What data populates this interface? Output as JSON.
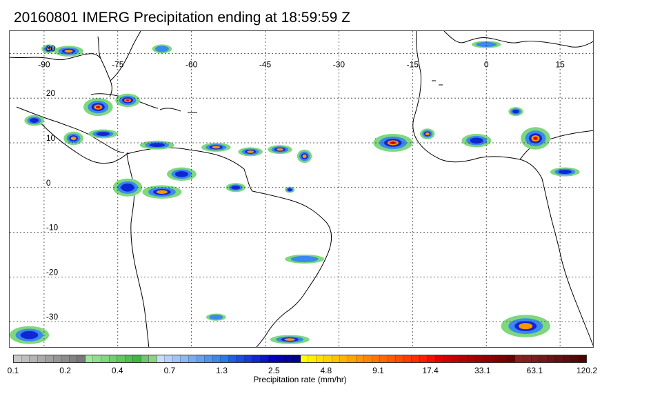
{
  "title": "20160801 IMERG Precipitation ending at 18:59:59 Z",
  "map": {
    "lon_range": [
      -97,
      22
    ],
    "lat_range": [
      -36,
      35
    ],
    "lon_ticks": [
      -90,
      -75,
      -60,
      -45,
      -30,
      -15,
      0,
      15
    ],
    "lon_tick_labels": [
      "-90",
      "-75",
      "-60",
      "-45",
      "-30",
      "-15",
      "0",
      "15"
    ],
    "lat_ticks": [
      30,
      20,
      10,
      0,
      -10,
      -20,
      -30
    ],
    "lat_tick_labels": [
      "30",
      "20",
      "10",
      "0",
      "-10",
      "-20",
      "-30"
    ],
    "gridlines": true
  },
  "colorbar": {
    "label": "Precipitation rate (mm/hr)",
    "tick_labels": [
      "0.1",
      "0.2",
      "0.4",
      "0.7",
      "1.3",
      "2.5",
      "4.8",
      "9.1",
      "17.4",
      "33.1",
      "63.1",
      "120.2"
    ],
    "colors": [
      "#c8c8c8",
      "#bebebe",
      "#b4b4b4",
      "#aaaaaa",
      "#a0a0a0",
      "#969696",
      "#8c8c8c",
      "#828282",
      "#787878",
      "#9ee89e",
      "#8ee08e",
      "#7ed87e",
      "#6ed06e",
      "#5ec85e",
      "#4ec04e",
      "#3eb83e",
      "#74c474",
      "#8cd08c",
      "#c8dcfa",
      "#b4d0f8",
      "#a0c4f6",
      "#8cb8f4",
      "#78acf2",
      "#64a0f0",
      "#5094ee",
      "#3c88ec",
      "#287ce8",
      "#1f5fe6",
      "#1a4ce0",
      "#1539da",
      "#1026d4",
      "#0b13ce",
      "#0000c8",
      "#0000b4",
      "#0000a0",
      "#00008c",
      "#ffff00",
      "#fff000",
      "#ffe100",
      "#ffd200",
      "#ffc300",
      "#ffb400",
      "#ffa500",
      "#ff9600",
      "#ff8700",
      "#ff7800",
      "#ff6900",
      "#ff5a00",
      "#ff4b00",
      "#ff3c00",
      "#ff2d00",
      "#ff1e00",
      "#f00f00",
      "#e00000",
      "#d00000",
      "#c00000",
      "#b40000",
      "#a80000",
      "#9c0000",
      "#900000",
      "#840000",
      "#780000",
      "#6c0000",
      "#8c2020",
      "#842020",
      "#7c1c1c",
      "#741818",
      "#6c1414",
      "#641010",
      "#5c0c0c",
      "#540808",
      "#4c0404"
    ]
  },
  "precipitation_cells": [
    {
      "lon": -79,
      "lat": 18,
      "rx": 3.0,
      "ry": 2.0,
      "intensity": 3
    },
    {
      "lon": -73,
      "lat": 19.5,
      "rx": 2.5,
      "ry": 1.5,
      "intensity": 3
    },
    {
      "lon": -85,
      "lat": 30.5,
      "rx": 3.0,
      "ry": 1.2,
      "intensity": 2
    },
    {
      "lon": -89,
      "lat": 31,
      "rx": 1.5,
      "ry": 1.0,
      "intensity": 2
    },
    {
      "lon": -92,
      "lat": 15,
      "rx": 2.0,
      "ry": 1.2,
      "intensity": 1
    },
    {
      "lon": -84,
      "lat": 11,
      "rx": 2.0,
      "ry": 1.5,
      "intensity": 2
    },
    {
      "lon": -78,
      "lat": 12,
      "rx": 3.0,
      "ry": 1.0,
      "intensity": 1
    },
    {
      "lon": -67,
      "lat": 9.5,
      "rx": 3.5,
      "ry": 1.0,
      "intensity": 1
    },
    {
      "lon": -55,
      "lat": 9,
      "rx": 3.0,
      "ry": 1.0,
      "intensity": 2
    },
    {
      "lon": -48,
      "lat": 8,
      "rx": 2.5,
      "ry": 1.0,
      "intensity": 2
    },
    {
      "lon": -42,
      "lat": 8.5,
      "rx": 2.5,
      "ry": 1.0,
      "intensity": 2
    },
    {
      "lon": -37,
      "lat": 7,
      "rx": 1.5,
      "ry": 1.5,
      "intensity": 2
    },
    {
      "lon": -19,
      "lat": 10,
      "rx": 4.0,
      "ry": 2.0,
      "intensity": 3
    },
    {
      "lon": -12,
      "lat": 12,
      "rx": 1.5,
      "ry": 1.2,
      "intensity": 2
    },
    {
      "lon": -2,
      "lat": 10.5,
      "rx": 3.0,
      "ry": 1.5,
      "intensity": 1
    },
    {
      "lon": 10,
      "lat": 11,
      "rx": 3.0,
      "ry": 2.5,
      "intensity": 3
    },
    {
      "lon": 6,
      "lat": 17,
      "rx": 1.5,
      "ry": 1.0,
      "intensity": 1
    },
    {
      "lon": 16,
      "lat": 3.5,
      "rx": 3.0,
      "ry": 1.0,
      "intensity": 1
    },
    {
      "lon": -73,
      "lat": 0,
      "rx": 3.0,
      "ry": 2.0,
      "intensity": 1
    },
    {
      "lon": -66,
      "lat": -1,
      "rx": 4.0,
      "ry": 1.5,
      "intensity": 2
    },
    {
      "lon": -62,
      "lat": 3,
      "rx": 3.0,
      "ry": 1.5,
      "intensity": 1
    },
    {
      "lon": -51,
      "lat": 0,
      "rx": 2.0,
      "ry": 1.0,
      "intensity": 1
    },
    {
      "lon": -40,
      "lat": -0.5,
      "rx": 1.0,
      "ry": 0.7,
      "intensity": 1
    },
    {
      "lon": -37,
      "lat": -16,
      "rx": 4.0,
      "ry": 1.0,
      "intensity": 0
    },
    {
      "lon": -93,
      "lat": -33,
      "rx": 4.0,
      "ry": 2.0,
      "intensity": 1
    },
    {
      "lon": 8,
      "lat": -31,
      "rx": 5.0,
      "ry": 2.5,
      "intensity": 2
    },
    {
      "lon": -40,
      "lat": -34,
      "rx": 4.0,
      "ry": 1.0,
      "intensity": 2
    },
    {
      "lon": -55,
      "lat": -29,
      "rx": 2.0,
      "ry": 0.8,
      "intensity": 0
    },
    {
      "lon": -66,
      "lat": 31,
      "rx": 2.0,
      "ry": 1.0,
      "intensity": 0
    },
    {
      "lon": 0,
      "lat": 32,
      "rx": 3.0,
      "ry": 0.8,
      "intensity": 0
    }
  ]
}
